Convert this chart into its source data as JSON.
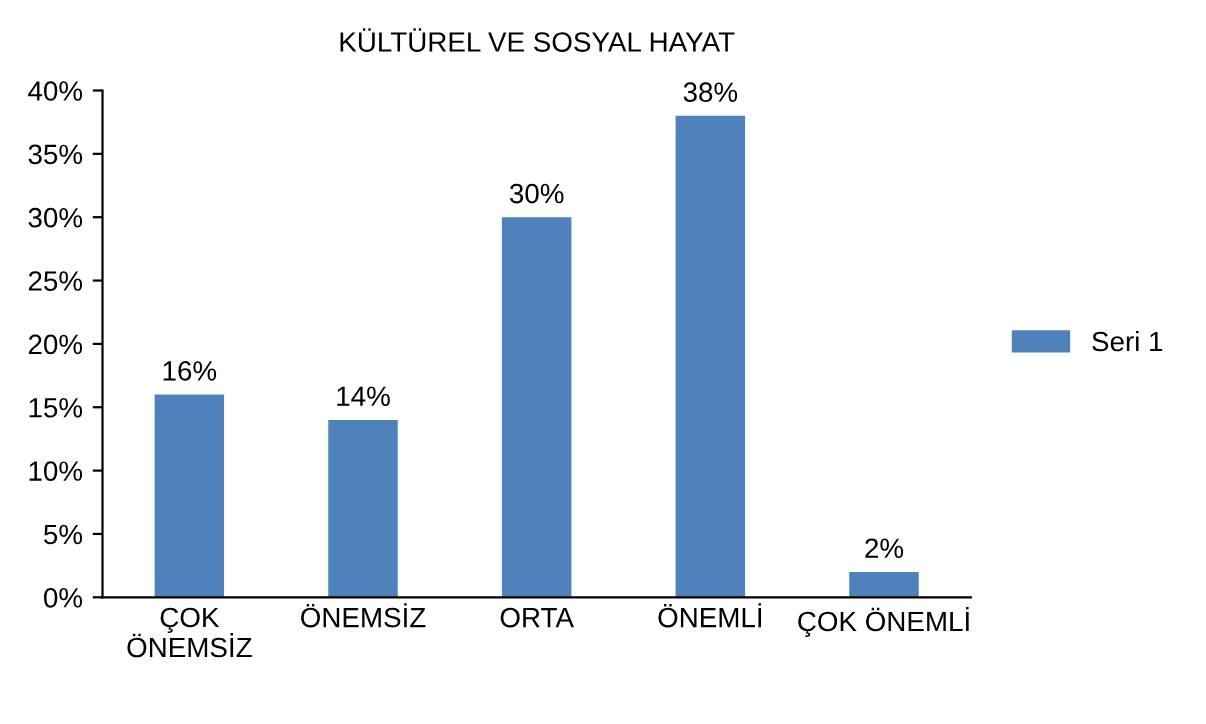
{
  "chart_data": {
    "type": "bar",
    "title": "KÜLTÜREL VE SOSYAL HAYAT",
    "categories": [
      "ÇOK\nÖNEMSİZ",
      "ÖNEMSİZ",
      "ORTA",
      "ÖNEMLİ",
      "ÇOK ÖNEMLİ"
    ],
    "series": [
      {
        "name": "Seri 1",
        "color": "#4f81bd",
        "values": [
          16,
          14,
          30,
          38,
          2
        ]
      }
    ],
    "value_labels": [
      "16%",
      "14%",
      "30%",
      "38%",
      "2%"
    ],
    "ylim": [
      0,
      40
    ],
    "yticks": [
      {
        "value": 0,
        "label": "0%"
      },
      {
        "value": 5,
        "label": "5%"
      },
      {
        "value": 10,
        "label": "10%"
      },
      {
        "value": 15,
        "label": "15%"
      },
      {
        "value": 20,
        "label": "20%"
      },
      {
        "value": 25,
        "label": "25%"
      },
      {
        "value": 30,
        "label": "30%"
      },
      {
        "value": 35,
        "label": "35%"
      },
      {
        "value": 40,
        "label": "40%"
      }
    ],
    "grid": false,
    "legend": "right"
  }
}
